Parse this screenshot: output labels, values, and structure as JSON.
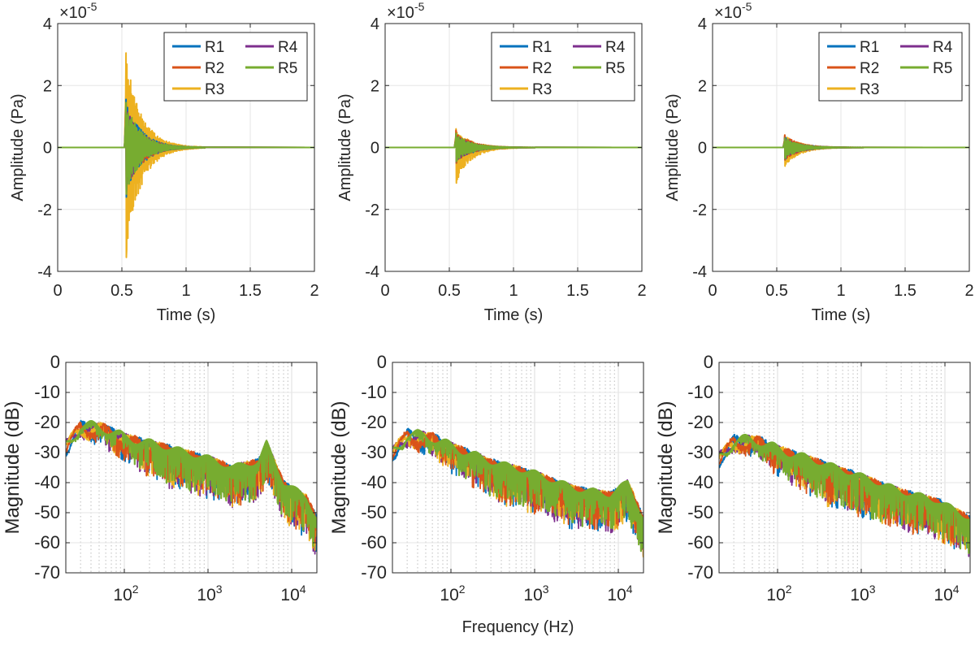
{
  "figure": {
    "xlabel_bottom": "Frequency (Hz)"
  },
  "legend": {
    "entries": [
      "R1",
      "R2",
      "R3",
      "R4",
      "R5"
    ]
  },
  "colors": {
    "R1": "#0072BD",
    "R2": "#D95319",
    "R3": "#EDB120",
    "R4": "#7E2F8E",
    "R5": "#77AC30",
    "grid": "#e6e6e6",
    "axis": "#262626"
  },
  "chart_data": [
    {
      "type": "line",
      "panel": "time-1",
      "xlabel": "Time (s)",
      "ylabel": "Amplitude (Pa)",
      "exponent": "×10",
      "exponent_power": "-5",
      "xlim": [
        0,
        2
      ],
      "ylim": [
        -4,
        4
      ],
      "xticks": [
        0,
        0.5,
        1,
        1.5,
        2
      ],
      "xtick_labels": [
        "0",
        "0.5",
        "1",
        "1.5",
        "2"
      ],
      "yticks": [
        -4,
        -2,
        0,
        2,
        4
      ],
      "ytick_labels": [
        "-4",
        "-2",
        "0",
        "2",
        "4"
      ],
      "onset_s": 0.53,
      "decay_end_s": 1.05,
      "series": [
        {
          "name": "R1",
          "peak_pos": 1.55,
          "peak_neg": -1.6
        },
        {
          "name": "R2",
          "peak_pos": 1.4,
          "peak_neg": -1.5
        },
        {
          "name": "R3",
          "peak_pos": 3.05,
          "peak_neg": -3.55
        },
        {
          "name": "R4",
          "peak_pos": 1.35,
          "peak_neg": -1.4
        },
        {
          "name": "R5",
          "peak_pos": 1.45,
          "peak_neg": -1.5
        }
      ]
    },
    {
      "type": "line",
      "panel": "time-2",
      "xlabel": "Time (s)",
      "ylabel": "Amplitude (Pa)",
      "exponent": "×10",
      "exponent_power": "-5",
      "xlim": [
        0,
        2
      ],
      "ylim": [
        -4,
        4
      ],
      "xticks": [
        0,
        0.5,
        1,
        1.5,
        2
      ],
      "xtick_labels": [
        "0",
        "0.5",
        "1",
        "1.5",
        "2"
      ],
      "yticks": [
        -4,
        -2,
        0,
        2,
        4
      ],
      "ytick_labels": [
        "-4",
        "-2",
        "0",
        "2",
        "4"
      ],
      "onset_s": 0.55,
      "decay_end_s": 1.1,
      "series": [
        {
          "name": "R1",
          "peak_pos": 0.45,
          "peak_neg": -0.5
        },
        {
          "name": "R2",
          "peak_pos": 0.55,
          "peak_neg": -0.5
        },
        {
          "name": "R3",
          "peak_pos": 0.6,
          "peak_neg": -1.15
        },
        {
          "name": "R4",
          "peak_pos": 0.4,
          "peak_neg": -0.45
        },
        {
          "name": "R5",
          "peak_pos": 0.45,
          "peak_neg": -0.45
        }
      ]
    },
    {
      "type": "line",
      "panel": "time-3",
      "xlabel": "Time (s)",
      "ylabel": "Amplitude (Pa)",
      "exponent": "×10",
      "exponent_power": "-5",
      "xlim": [
        0,
        2
      ],
      "ylim": [
        -4,
        4
      ],
      "xticks": [
        0,
        0.5,
        1,
        1.5,
        2
      ],
      "xtick_labels": [
        "0",
        "0.5",
        "1",
        "1.5",
        "2"
      ],
      "yticks": [
        -4,
        -2,
        0,
        2,
        4
      ],
      "ytick_labels": [
        "-4",
        "-2",
        "0",
        "2",
        "4"
      ],
      "onset_s": 0.56,
      "decay_end_s": 1.1,
      "series": [
        {
          "name": "R1",
          "peak_pos": 0.35,
          "peak_neg": -0.4
        },
        {
          "name": "R2",
          "peak_pos": 0.4,
          "peak_neg": -0.4
        },
        {
          "name": "R3",
          "peak_pos": 0.4,
          "peak_neg": -0.6
        },
        {
          "name": "R4",
          "peak_pos": 0.3,
          "peak_neg": -0.35
        },
        {
          "name": "R5",
          "peak_pos": 0.3,
          "peak_neg": -0.35
        }
      ]
    },
    {
      "type": "line",
      "panel": "freq-1",
      "xscale": "log",
      "xlabel": "",
      "ylabel": "Magnitude (dB)",
      "xlim": [
        20,
        20000
      ],
      "ylim": [
        -70,
        0
      ],
      "xticks": [
        100,
        1000,
        10000
      ],
      "xtick_base": [
        "10",
        "10",
        "10"
      ],
      "xtick_exp": [
        "2",
        "3",
        "4"
      ],
      "yticks": [
        0,
        -10,
        -20,
        -30,
        -40,
        -50,
        -60,
        -70
      ],
      "ytick_labels": [
        "0",
        "-10",
        "-20",
        "-30",
        "-40",
        "-50",
        "-60",
        "-70"
      ],
      "envelope_db": [
        [
          20,
          -28
        ],
        [
          30,
          -21
        ],
        [
          60,
          -22
        ],
        [
          100,
          -25
        ],
        [
          300,
          -28
        ],
        [
          1000,
          -32
        ],
        [
          2000,
          -35
        ],
        [
          4000,
          -33
        ],
        [
          5000,
          -27
        ],
        [
          8000,
          -40
        ],
        [
          15000,
          -45
        ],
        [
          20000,
          -52
        ]
      ],
      "spread_db": 12,
      "series": [
        {
          "name": "R1"
        },
        {
          "name": "R2"
        },
        {
          "name": "R3"
        },
        {
          "name": "R4"
        },
        {
          "name": "R5"
        }
      ]
    },
    {
      "type": "line",
      "panel": "freq-2",
      "xscale": "log",
      "xlabel": "Frequency (Hz)",
      "ylabel": "Magnitude (dB)",
      "xlim": [
        20,
        20000
      ],
      "ylim": [
        -70,
        0
      ],
      "xticks": [
        100,
        1000,
        10000
      ],
      "xtick_base": [
        "10",
        "10",
        "10"
      ],
      "xtick_exp": [
        "2",
        "3",
        "4"
      ],
      "yticks": [
        0,
        -10,
        -20,
        -30,
        -40,
        -50,
        -60,
        -70
      ],
      "ytick_labels": [
        "0",
        "-10",
        "-20",
        "-30",
        "-40",
        "-50",
        "-60",
        "-70"
      ],
      "envelope_db": [
        [
          20,
          -30
        ],
        [
          30,
          -24
        ],
        [
          60,
          -25
        ],
        [
          100,
          -28
        ],
        [
          300,
          -33
        ],
        [
          1000,
          -37
        ],
        [
          3000,
          -42
        ],
        [
          8000,
          -44
        ],
        [
          13000,
          -40
        ],
        [
          20000,
          -52
        ]
      ],
      "spread_db": 12,
      "series": [
        {
          "name": "R1"
        },
        {
          "name": "R2"
        },
        {
          "name": "R3"
        },
        {
          "name": "R4"
        },
        {
          "name": "R5"
        }
      ]
    },
    {
      "type": "line",
      "panel": "freq-3",
      "xscale": "log",
      "xlabel": "",
      "ylabel": "Magnitude (dB)",
      "xlim": [
        20,
        20000
      ],
      "ylim": [
        -70,
        0
      ],
      "xticks": [
        100,
        1000,
        10000
      ],
      "xtick_base": [
        "10",
        "10",
        "10"
      ],
      "xtick_exp": [
        "2",
        "3",
        "4"
      ],
      "yticks": [
        0,
        -10,
        -20,
        -30,
        -40,
        -50,
        -60,
        -70
      ],
      "ytick_labels": [
        "0",
        "-10",
        "-20",
        "-30",
        "-40",
        "-50",
        "-60",
        "-70"
      ],
      "envelope_db": [
        [
          20,
          -32
        ],
        [
          30,
          -26
        ],
        [
          60,
          -26
        ],
        [
          100,
          -29
        ],
        [
          300,
          -33
        ],
        [
          1000,
          -38
        ],
        [
          3000,
          -43
        ],
        [
          8000,
          -46
        ],
        [
          20000,
          -52
        ]
      ],
      "spread_db": 12,
      "series": [
        {
          "name": "R1"
        },
        {
          "name": "R2"
        },
        {
          "name": "R3"
        },
        {
          "name": "R4"
        },
        {
          "name": "R5"
        }
      ]
    }
  ]
}
